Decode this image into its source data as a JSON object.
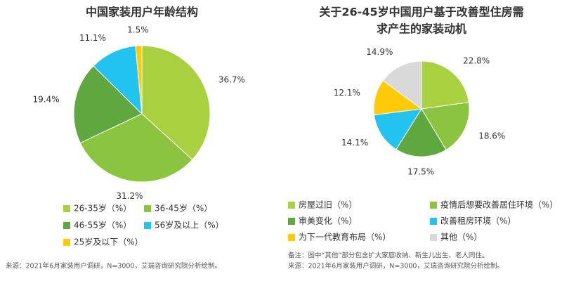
{
  "chart_data": [
    {
      "type": "pie",
      "title": [
        "中国家装用户年龄结构"
      ],
      "categories": [
        "26-35岁（%）",
        "36-45岁（%）",
        "46-55岁（%）",
        "56岁及以上（%）",
        "25岁及以下（%）"
      ],
      "values": [
        36.7,
        31.2,
        19.4,
        11.1,
        1.5
      ],
      "value_labels": [
        "36.7%",
        "31.2%",
        "19.4%",
        "11.1%",
        "1.5%"
      ],
      "colors": [
        "#a9d13f",
        "#8bc53f",
        "#5ea83f",
        "#22c3ee",
        "#ffca08"
      ]
    },
    {
      "type": "pie",
      "title": [
        "关于26-45岁中国用户基于改善型住房需",
        "求产生的家装动机"
      ],
      "categories": [
        "房屋过旧（%）",
        "疫情后想要改善居住环境（%）",
        "审美变化（%）",
        "改善租房环境（%）",
        "为下一代教育布局（%）",
        "其他（%）"
      ],
      "values": [
        22.8,
        18.6,
        17.5,
        14.1,
        12.1,
        14.9
      ],
      "value_labels": [
        "22.8%",
        "18.6%",
        "17.5%",
        "14.1%",
        "12.1%",
        "14.9%"
      ],
      "colors": [
        "#a9d13f",
        "#8bc53f",
        "#5ea83f",
        "#22c3ee",
        "#ffca08",
        "#d9d9d9"
      ]
    }
  ],
  "notes": {
    "left_source": "来源：2021年6月家装用户调研，N=3000，艾瑞咨询研究院分析绘制。",
    "right_note": "备注：图中“其他”部分包含扩大家庭收纳、新生儿出生、老人同住。",
    "right_source": "来源：2021年6月家装用户调研，N=3000，艾瑞咨询研究院分析绘制。"
  }
}
